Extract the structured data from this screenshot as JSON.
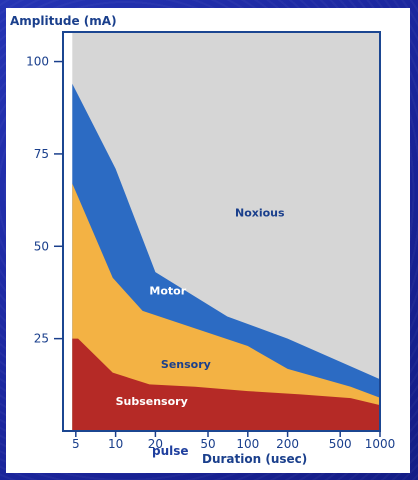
{
  "chart_data": {
    "type": "area",
    "title": "",
    "ylabel": "Amplitude (mA)",
    "xlabel": "Duration (usec)",
    "x_scale": "log",
    "xlim": [
      4,
      1000
    ],
    "ylim": [
      0,
      108
    ],
    "x_ticks": [
      5,
      10,
      20,
      50,
      100,
      200,
      500,
      1000
    ],
    "y_ticks": [
      25,
      50,
      75,
      100
    ],
    "grid": false,
    "legend": "none",
    "colors": {
      "Subsensory": "#b52a26",
      "Sensory": "#f3b244",
      "Motor": "#2c6bc3",
      "Noxious": "#d6d6d6",
      "frame": "#1b4691",
      "region_text_light": "#ffffff",
      "region_text_dark": "#1a3f8c",
      "tick_color": "#1a3f8c"
    },
    "regions": [
      {
        "name": "Subsensory",
        "label_at": [
          10,
          7
        ],
        "boundary": [
          [
            4.7,
            25
          ],
          [
            5.2,
            25
          ],
          [
            9.5,
            15.8
          ],
          [
            18,
            12.6
          ],
          [
            40,
            12
          ],
          [
            100,
            10.8
          ],
          [
            250,
            9.9
          ],
          [
            600,
            8.9
          ],
          [
            1000,
            7
          ]
        ]
      },
      {
        "name": "Sensory",
        "label_at": [
          22,
          17
        ],
        "boundary": [
          [
            4.7,
            67
          ],
          [
            9.5,
            41.5
          ],
          [
            16,
            32.5
          ],
          [
            100,
            23
          ],
          [
            200,
            16.8
          ],
          [
            600,
            12
          ],
          [
            1000,
            9
          ]
        ]
      },
      {
        "name": "Motor",
        "label_at": [
          18,
          37
        ],
        "boundary": [
          [
            4.7,
            94
          ],
          [
            10,
            71
          ],
          [
            20,
            43
          ],
          [
            70,
            31
          ],
          [
            200,
            25
          ],
          [
            1000,
            14
          ]
        ]
      },
      {
        "name": "Noxious",
        "label_at": [
          80,
          58
        ],
        "boundary": [
          [
            4.7,
            108
          ],
          [
            1000,
            108
          ]
        ]
      }
    ]
  },
  "annotation": {
    "pulse_label": "pulse"
  }
}
